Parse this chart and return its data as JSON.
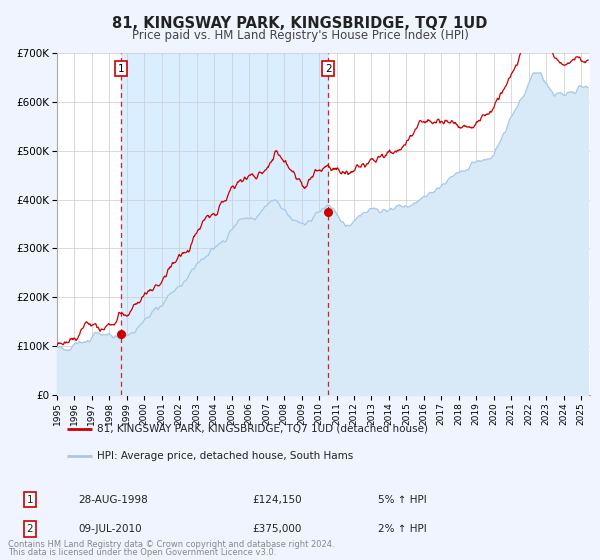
{
  "title": "81, KINGSWAY PARK, KINGSBRIDGE, TQ7 1UD",
  "subtitle": "Price paid vs. HM Land Registry's House Price Index (HPI)",
  "bg_color": "#f0f4ff",
  "plot_bg_color": "#ffffff",
  "grid_color": "#cccccc",
  "hpi_color": "#a8c8e8",
  "hpi_fill_color": "#d8eaf8",
  "price_color": "#cc0000",
  "span_color": "#daeeff",
  "xmin": 1995.0,
  "xmax": 2025.5,
  "ymin": 0,
  "ymax": 700000,
  "yticks": [
    0,
    100000,
    200000,
    300000,
    400000,
    500000,
    600000,
    700000
  ],
  "ytick_labels": [
    "£0",
    "£100K",
    "£200K",
    "£300K",
    "£400K",
    "£500K",
    "£600K",
    "£700K"
  ],
  "xtick_years": [
    1995,
    1996,
    1997,
    1998,
    1999,
    2000,
    2001,
    2002,
    2003,
    2004,
    2005,
    2006,
    2007,
    2008,
    2009,
    2010,
    2011,
    2012,
    2013,
    2014,
    2015,
    2016,
    2017,
    2018,
    2019,
    2020,
    2021,
    2022,
    2023,
    2024,
    2025
  ],
  "sale1_x": 1998.65,
  "sale1_y": 124150,
  "sale1_label": "1",
  "sale1_date": "28-AUG-1998",
  "sale1_price": "£124,150",
  "sale1_hpi": "5% ↑ HPI",
  "sale2_x": 2010.52,
  "sale2_y": 375000,
  "sale2_label": "2",
  "sale2_date": "09-JUL-2010",
  "sale2_price": "£375,000",
  "sale2_hpi": "2% ↑ HPI",
  "legend_line1": "81, KINGSWAY PARK, KINGSBRIDGE, TQ7 1UD (detached house)",
  "legend_line2": "HPI: Average price, detached house, South Hams",
  "footer1": "Contains HM Land Registry data © Crown copyright and database right 2024.",
  "footer2": "This data is licensed under the Open Government Licence v3.0."
}
